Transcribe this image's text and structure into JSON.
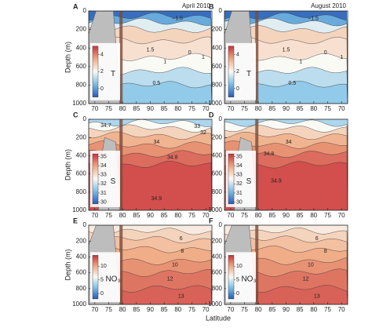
{
  "chart_data": [
    {
      "type": "contour",
      "panel": "A",
      "title": "April 2010",
      "variable": "T",
      "ylabel": "Depth (m)",
      "ylim": [
        1000,
        0
      ],
      "yticks": [
        0,
        200,
        400,
        600,
        800,
        1000
      ],
      "xticks": [
        "70",
        "75",
        "80",
        "85",
        "90",
        "85",
        "80",
        "75",
        "70"
      ],
      "clim": [
        -1,
        5
      ],
      "colorbar_ticks": [
        0,
        2,
        4
      ],
      "contour_labels": [
        "−1.5",
        "1.5",
        "1",
        "0",
        "1",
        "0.5"
      ]
    },
    {
      "type": "contour",
      "panel": "B",
      "title": "August 2010",
      "variable": "T",
      "ylim": [
        1000,
        0
      ],
      "yticks": [
        0,
        200,
        400,
        600,
        800,
        1000
      ],
      "xticks": [
        "70",
        "75",
        "80",
        "85",
        "90",
        "85",
        "80",
        "75",
        "70"
      ],
      "clim": [
        -1,
        5
      ],
      "colorbar_ticks": [
        0,
        2,
        4
      ],
      "contour_labels": [
        "−1.5",
        "1.5",
        "1",
        "0",
        "1",
        "0.5"
      ]
    },
    {
      "type": "contour",
      "panel": "C",
      "variable": "S",
      "ylabel": "Depth (m)",
      "ylim": [
        1000,
        0
      ],
      "yticks": [
        0,
        200,
        400,
        600,
        800,
        1000
      ],
      "xticks": [
        "70",
        "75",
        "80",
        "85",
        "90",
        "85",
        "80",
        "75",
        "70"
      ],
      "clim": [
        29.8,
        35.3
      ],
      "colorbar_ticks": [
        30,
        31,
        32,
        33,
        34,
        35
      ],
      "contour_labels": [
        "34.7",
        "33",
        "32",
        "34",
        "34.8",
        "34.9"
      ]
    },
    {
      "type": "contour",
      "panel": "D",
      "variable": "S",
      "ylim": [
        1000,
        0
      ],
      "yticks": [
        0,
        200,
        400,
        600,
        800,
        1000
      ],
      "xticks": [
        "70",
        "75",
        "80",
        "85",
        "90",
        "85",
        "80",
        "75",
        "70"
      ],
      "clim": [
        29.8,
        35.3
      ],
      "colorbar_ticks": [
        30,
        31,
        32,
        33,
        34,
        35
      ],
      "contour_labels": [
        "34",
        "34.8",
        "34.9"
      ]
    },
    {
      "type": "contour",
      "panel": "E",
      "variable": "NO₃",
      "ylabel": "Depth (m)",
      "xlabel": "Latitude",
      "ylim": [
        1000,
        0
      ],
      "yticks": [
        0,
        200,
        400,
        600,
        800,
        1000
      ],
      "xticks": [
        "70",
        "75",
        "80",
        "85",
        "90",
        "85",
        "80",
        "75",
        "70"
      ],
      "clim": [
        -2,
        14
      ],
      "colorbar_ticks": [
        0,
        5,
        10
      ],
      "contour_labels": [
        "6",
        "8",
        "10",
        "12",
        "13"
      ]
    },
    {
      "type": "contour",
      "panel": "F",
      "variable": "NO₃",
      "ylim": [
        1000,
        0
      ],
      "yticks": [
        0,
        200,
        400,
        600,
        800,
        1000
      ],
      "xticks": [
        "70",
        "75",
        "80",
        "85",
        "90",
        "85",
        "80",
        "75",
        "70"
      ],
      "clim": [
        -2,
        14
      ],
      "colorbar_ticks": [
        0,
        5,
        10
      ],
      "contour_labels": [
        "6",
        "8",
        "10",
        "12",
        "13"
      ]
    }
  ]
}
